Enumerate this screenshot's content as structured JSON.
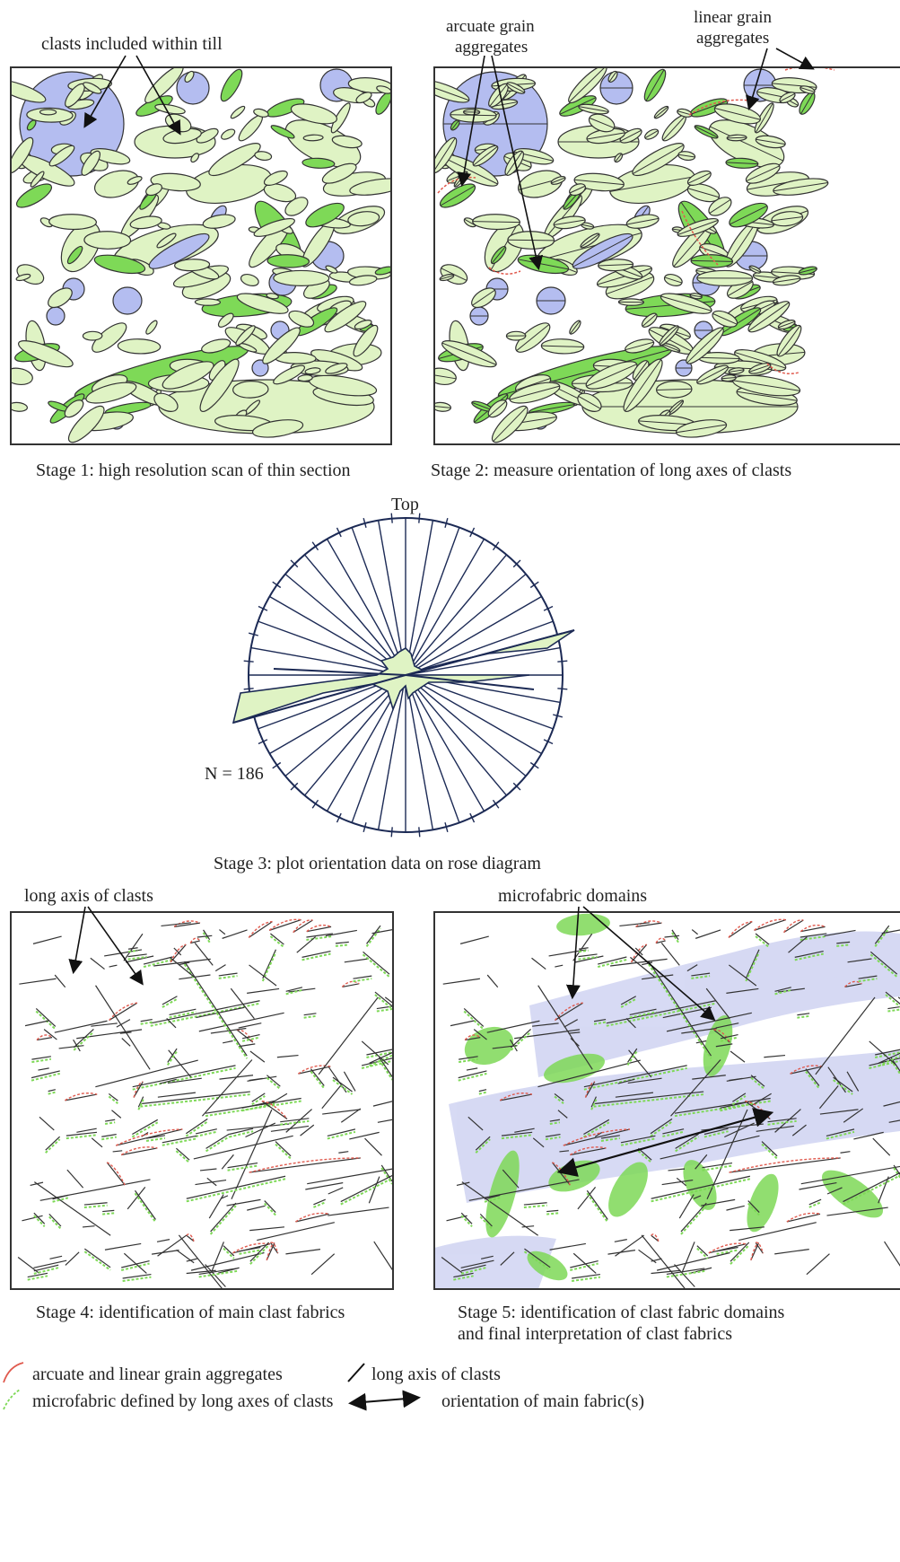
{
  "annotations": {
    "clasts_within_till": "clasts included within till",
    "arcuate_aggregates_line1": "arcuate grain",
    "arcuate_aggregates_line2": "aggregates",
    "linear_aggregates_line1": "linear grain",
    "linear_aggregates_line2": "aggregates",
    "long_axis_clasts": "long axis of clasts",
    "microfabric_domains": "microfabric domains",
    "top": "Top",
    "n_count": "N = 186"
  },
  "stages": {
    "stage1": "Stage 1: high resolution scan of thin section",
    "stage2": "Stage 2: measure orientation of long axes of clasts",
    "stage3": "Stage 3: plot orientation data on rose diagram",
    "stage4": "Stage 4: identification of main clast fabrics",
    "stage5_line1": "Stage 5: identification of clast fabric domains",
    "stage5_line2": "and final interpretation of clast fabrics"
  },
  "legend": {
    "arcuate_linear": "arcuate and linear grain aggregates",
    "microfabric": "microfabric defined by long axes of clasts",
    "long_axis": "long axis of clasts",
    "main_fabric": "orientation of main fabric(s)"
  },
  "colors": {
    "light_green": "#dff3c4",
    "bright_green": "#7ed957",
    "blue": "#b4bdf0",
    "red": "#e05a4e",
    "outline": "#333333",
    "rose_blue": "#1c2a55"
  }
}
